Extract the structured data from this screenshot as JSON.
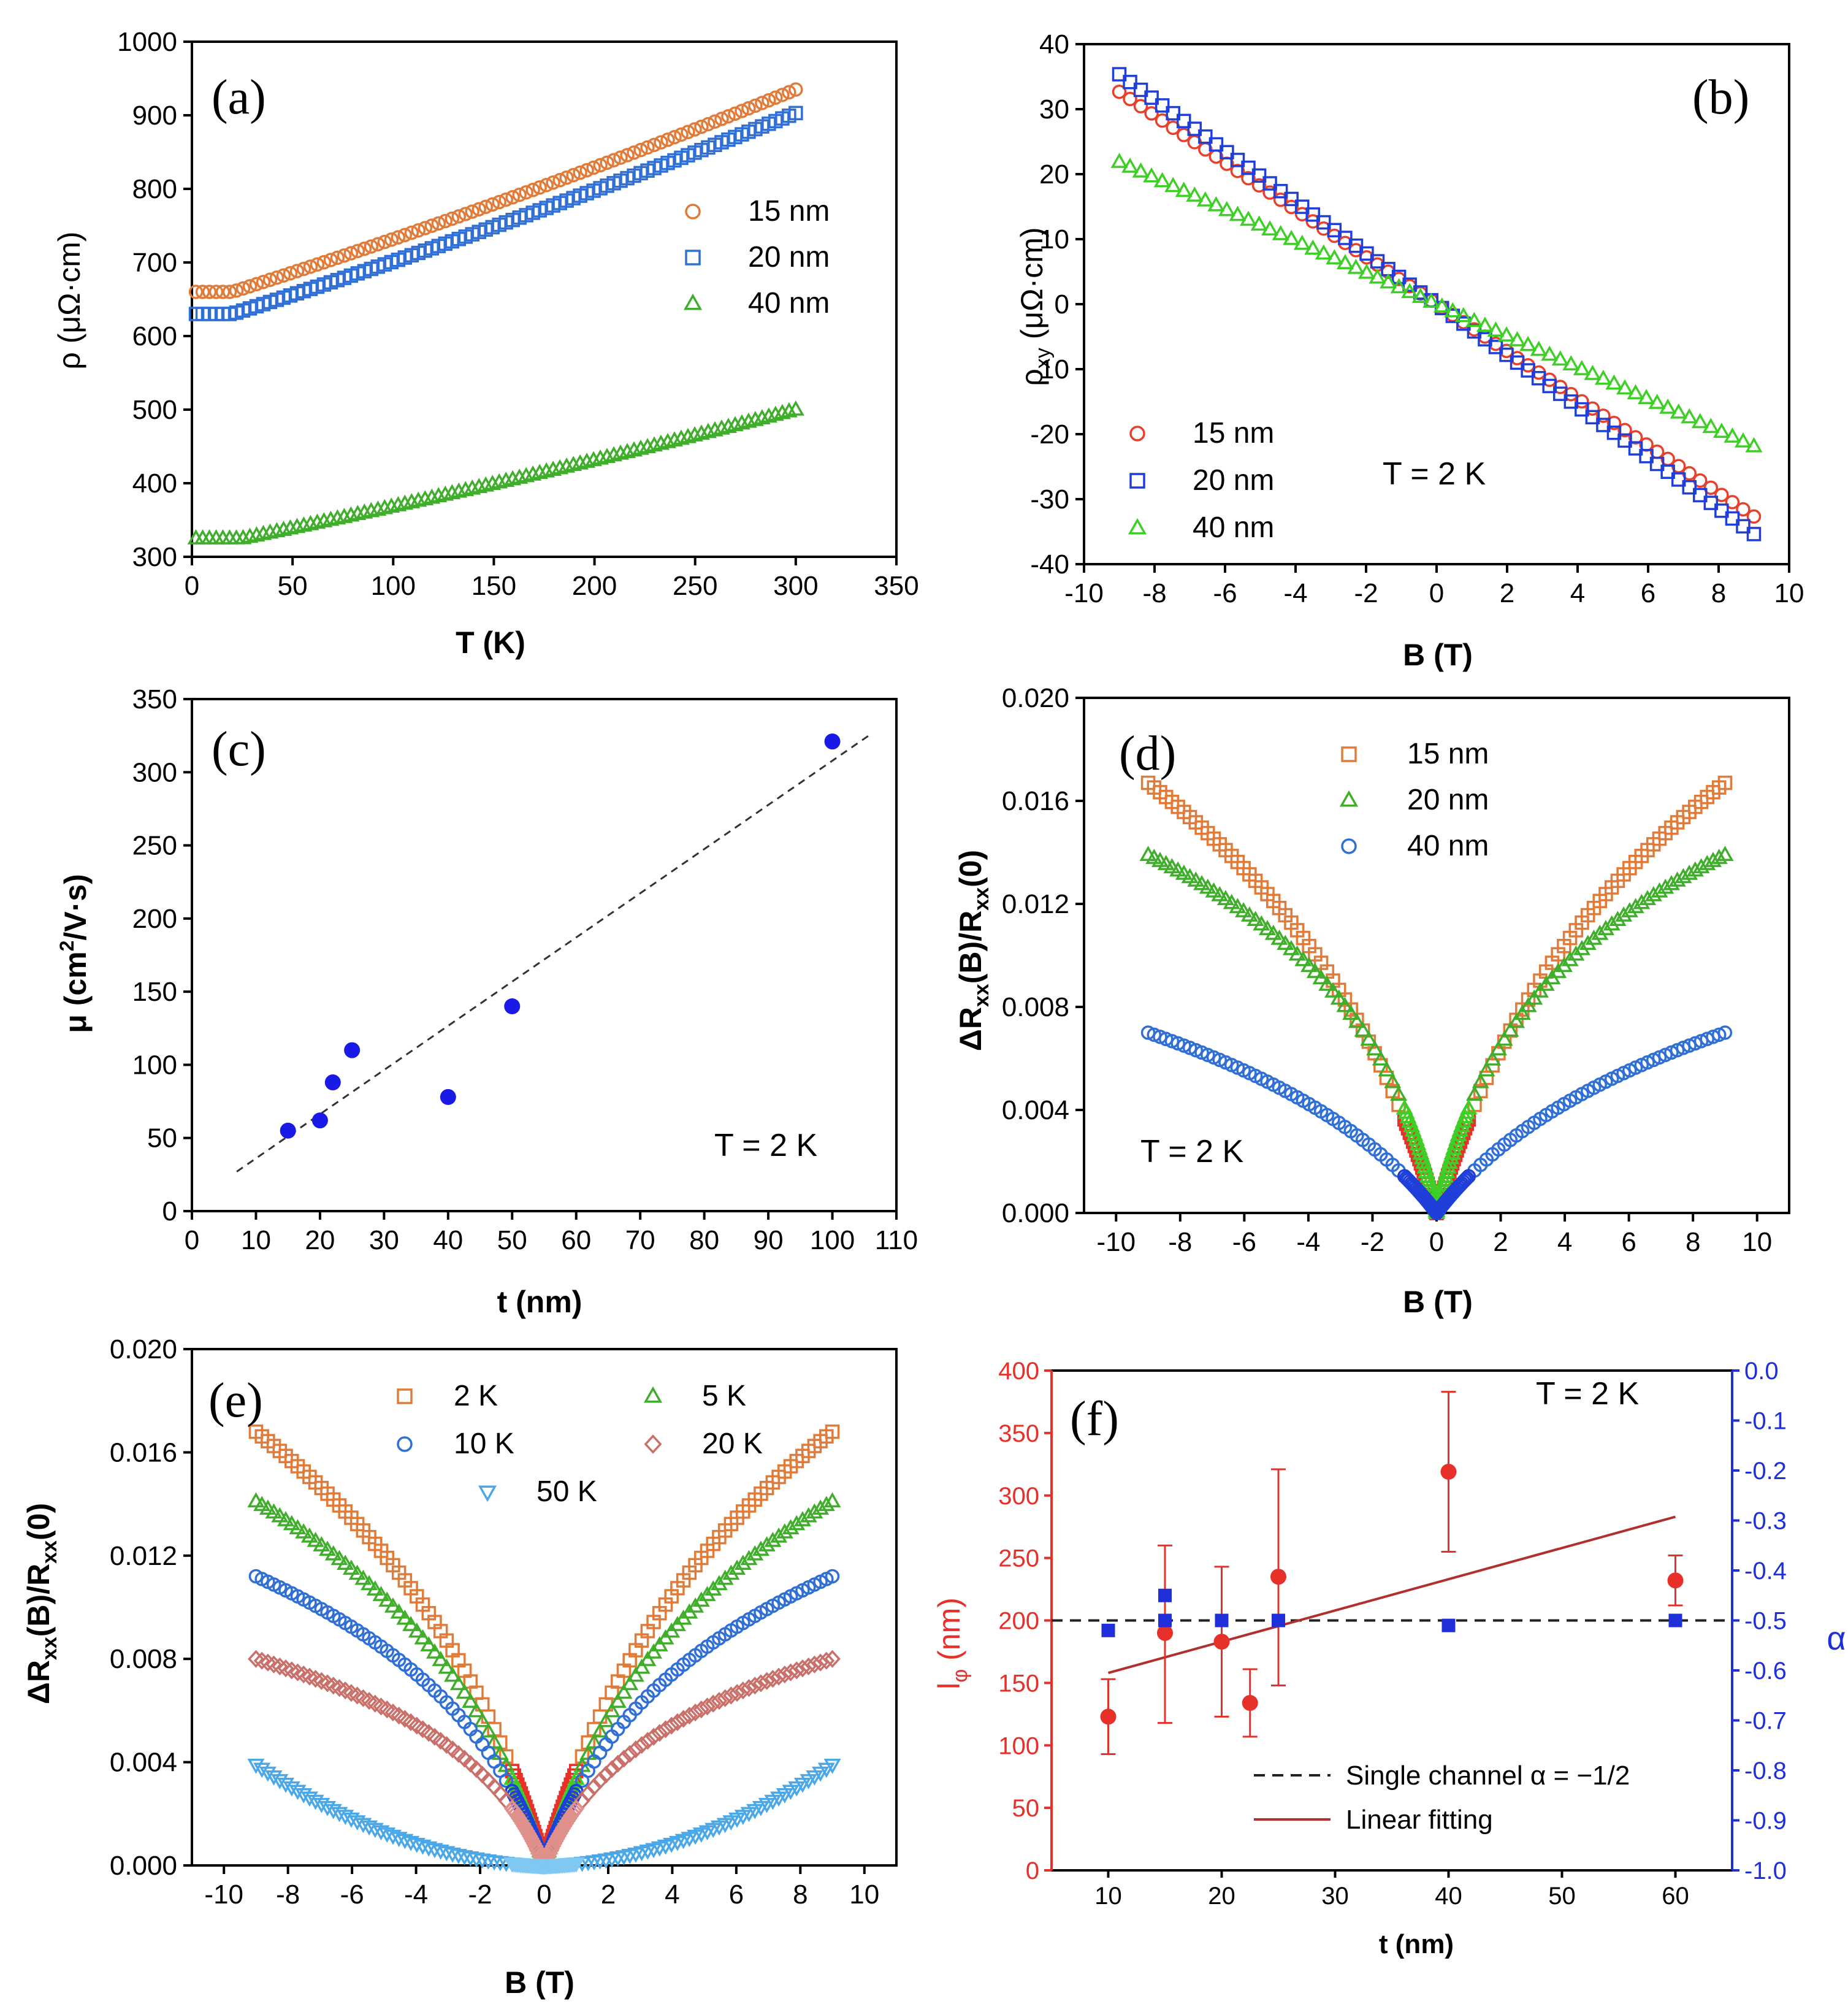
{
  "chart_data": [
    {
      "id": "a",
      "type": "scatter",
      "panel_label": "(a)",
      "xlabel": "T (K)",
      "ylabel": "ρ (μΩ·cm)",
      "xlim": [
        0,
        350
      ],
      "ylim": [
        300,
        1000
      ],
      "xticks": [
        0,
        50,
        100,
        150,
        200,
        250,
        300,
        350
      ],
      "yticks": [
        300,
        400,
        500,
        600,
        700,
        800,
        900,
        1000
      ],
      "legend_position": "center-right",
      "series": [
        {
          "name": "15 nm",
          "marker": "circle",
          "color": "#e07b39",
          "curve": {
            "kind": "resistivity",
            "x0": 2,
            "x1": 300,
            "n": 90,
            "y0": 660,
            "y1": 935,
            "flat": 20
          }
        },
        {
          "name": "20 nm",
          "marker": "square",
          "color": "#2f6fd6",
          "curve": {
            "kind": "resistivity",
            "x0": 2,
            "x1": 300,
            "n": 90,
            "y0": 630,
            "y1": 903,
            "flat": 20
          }
        },
        {
          "name": "40 nm",
          "marker": "triangle",
          "color": "#3fae2a",
          "curve": {
            "kind": "resistivity",
            "x0": 2,
            "x1": 300,
            "n": 90,
            "y0": 325,
            "y1": 500,
            "flat": 25
          }
        }
      ]
    },
    {
      "id": "b",
      "type": "scatter",
      "panel_label": "(b)",
      "xlabel": "B (T)",
      "ylabel": "ρ",
      "ylabel_sub": "xy",
      "ylabel_unit": " (μΩ·cm)",
      "xlim": [
        -10,
        10
      ],
      "ylim": [
        -40,
        40
      ],
      "xticks": [
        -10,
        -8,
        -6,
        -4,
        -2,
        0,
        2,
        4,
        6,
        8,
        10
      ],
      "yticks": [
        -40,
        -30,
        -20,
        -10,
        0,
        10,
        20,
        30,
        40
      ],
      "annotation": "T = 2 K",
      "legend_position": "bottom-left",
      "series": [
        {
          "name": "15 nm",
          "marker": "circle",
          "color": "#e8402a",
          "curve": {
            "kind": "linear",
            "x0": -9,
            "x1": 9,
            "n": 60,
            "slope": -3.63
          }
        },
        {
          "name": "20 nm",
          "marker": "square",
          "color": "#1f3fd8",
          "curve": {
            "kind": "linear",
            "x0": -9,
            "x1": 9,
            "n": 60,
            "slope": -3.93
          }
        },
        {
          "name": "40 nm",
          "marker": "triangle",
          "color": "#3ecf26",
          "curve": {
            "kind": "linear",
            "x0": -9,
            "x1": 9,
            "n": 60,
            "slope": -2.43
          }
        }
      ]
    },
    {
      "id": "c",
      "type": "scatter",
      "panel_label": "(c)",
      "xlabel": "t (nm)",
      "ylabel": "μ (cm",
      "ylabel_sup": "2",
      "ylabel_unit": "/V·s)",
      "xlim": [
        0,
        110
      ],
      "ylim": [
        0,
        350
      ],
      "xticks": [
        0,
        10,
        20,
        30,
        40,
        50,
        60,
        70,
        80,
        90,
        100,
        110
      ],
      "yticks": [
        0,
        50,
        100,
        150,
        200,
        250,
        300,
        350
      ],
      "annotation": "T = 2 K",
      "points": {
        "x": [
          15,
          20,
          22,
          25,
          40,
          50,
          100
        ],
        "y": [
          55,
          62,
          88,
          110,
          78,
          140,
          321
        ]
      },
      "fit_line": {
        "x": [
          7,
          106
        ],
        "y": [
          27,
          326
        ]
      }
    },
    {
      "id": "d",
      "type": "scatter",
      "panel_label": "(d)",
      "xlabel": "B (T)",
      "ylabel": "ΔR",
      "ylabel_sub": "xx",
      "ylabel_unit": "(B)/R",
      "ylabel_sub2": "xx",
      "ylabel_unit2": "(0)",
      "xlim": [
        -11,
        11
      ],
      "ylim": [
        0,
        0.02
      ],
      "xticks": [
        -10,
        -8,
        -6,
        -4,
        -2,
        0,
        2,
        4,
        6,
        8,
        10
      ],
      "yticks": [
        0,
        0.004,
        0.008,
        0.012,
        0.016,
        0.02
      ],
      "ytick_labels": [
        "0.000",
        "0.004",
        "0.008",
        "0.012",
        "0.016",
        "0.020"
      ],
      "annotation": "T = 2 K",
      "legend_position": "top-center",
      "series": [
        {
          "name": "15 nm",
          "marker": "square",
          "color": "#e07b39",
          "inner_color": "#e8302a",
          "curve": {
            "kind": "cusp",
            "A": 0.0167,
            "B0": 2.6,
            "n": 90
          }
        },
        {
          "name": "20 nm",
          "marker": "triangle",
          "color": "#3fae2a",
          "inner_color": "#3ecf26",
          "curve": {
            "kind": "cusp",
            "A": 0.0139,
            "B0": 1.1,
            "n": 90
          }
        },
        {
          "name": "40 nm",
          "marker": "circle",
          "color": "#2f6fd6",
          "inner_color": "#1f3fd8",
          "curve": {
            "kind": "cusp",
            "A": 0.007,
            "B0": 3.2,
            "n": 90
          }
        }
      ]
    },
    {
      "id": "e",
      "type": "scatter",
      "panel_label": "(e)",
      "xlabel": "B (T)",
      "ylabel": "ΔR",
      "ylabel_sub": "xx",
      "ylabel_unit": "(B)/R",
      "ylabel_sub2": "xx",
      "ylabel_unit2": "(0)",
      "xlim": [
        -11,
        11
      ],
      "ylim": [
        0,
        0.02
      ],
      "xticks": [
        -10,
        -8,
        -6,
        -4,
        -2,
        0,
        2,
        4,
        6,
        8,
        10
      ],
      "yticks": [
        0,
        0.004,
        0.008,
        0.012,
        0.016,
        0.02
      ],
      "ytick_labels": [
        "0.000",
        "0.004",
        "0.008",
        "0.012",
        "0.016",
        "0.020"
      ],
      "legend_position": "top-center",
      "series": [
        {
          "name": "2 K",
          "marker": "square",
          "color": "#e07b39",
          "inner_color": "#e8302a",
          "curve": {
            "kind": "cusp",
            "A": 0.0168,
            "B0": 2.6,
            "n": 90
          }
        },
        {
          "name": "5 K",
          "marker": "triangle",
          "color": "#3fae2a",
          "inner_color": "#3ecf26",
          "curve": {
            "kind": "cusp",
            "A": 0.0141,
            "B0": 2.0,
            "n": 90
          }
        },
        {
          "name": "10 K",
          "marker": "circle",
          "color": "#2f6fd6",
          "inner_color": "#1f3fd8",
          "curve": {
            "kind": "cusp",
            "A": 0.0112,
            "B0": 1.6,
            "n": 90
          }
        },
        {
          "name": "20 K",
          "marker": "diamond",
          "color": "#c9706a",
          "inner_color": "#e0908a",
          "curve": {
            "kind": "cusp",
            "A": 0.008,
            "B0": 1.3,
            "n": 90
          }
        },
        {
          "name": "50 K",
          "marker": "triangle-down",
          "color": "#4aa8e8",
          "inner_color": "#7ec8f2",
          "curve": {
            "kind": "parabolic",
            "A": 0.0039,
            "n": 90
          }
        }
      ]
    },
    {
      "id": "f",
      "type": "scatter",
      "panel_label": "(f)",
      "xlabel": "t (nm)",
      "ylabel": "l",
      "ylabel_sub": "φ",
      "ylabel_unit": " (nm)",
      "ylabel_right": "α",
      "xlim": [
        5,
        65
      ],
      "ylim": [
        0,
        400
      ],
      "ylim_right": [
        -1.0,
        0.0
      ],
      "xticks": [
        10,
        20,
        30,
        40,
        50,
        60
      ],
      "yticks": [
        0,
        50,
        100,
        150,
        200,
        250,
        300,
        350,
        400
      ],
      "yticks_right": [
        -1.0,
        -0.9,
        -0.8,
        -0.7,
        -0.6,
        -0.5,
        -0.4,
        -0.3,
        -0.2,
        -0.1,
        0.0
      ],
      "ytick_labels_right": [
        "-1.0",
        "-0.9",
        "-0.8",
        "-0.7",
        "-0.6",
        "-0.5",
        "-0.4",
        "-0.3",
        "-0.2",
        "-0.1",
        "0.0"
      ],
      "left_axis_color": "#e8302a",
      "right_axis_color": "#2030d8",
      "annotation": "T = 2 K",
      "l_phi": {
        "t": [
          10,
          15,
          20,
          22.5,
          25,
          40,
          60
        ],
        "values": [
          123,
          190,
          183,
          134,
          235,
          319,
          232
        ],
        "err_hi": [
          153,
          260,
          243,
          161,
          321,
          383,
          252
        ],
        "err_lo": [
          93,
          118,
          123,
          107,
          148,
          255,
          212
        ],
        "color": "#e8302a"
      },
      "alpha": {
        "t": [
          10,
          15,
          15,
          20,
          25,
          40,
          60
        ],
        "values": [
          -0.52,
          -0.45,
          -0.5,
          -0.5,
          -0.5,
          -0.51,
          -0.5
        ],
        "color": "#2030d8"
      },
      "reference_line": {
        "label": "Single channel α = −1/2",
        "alpha": -0.5
      },
      "fit": {
        "label": "Linear fitting",
        "t": [
          10,
          60
        ],
        "values": [
          158,
          283
        ],
        "color": "#b03030"
      }
    }
  ]
}
